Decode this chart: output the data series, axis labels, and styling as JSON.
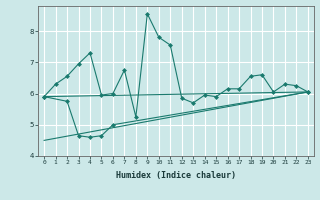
{
  "xlabel": "Humidex (Indice chaleur)",
  "background_color": "#cce8e8",
  "grid_color": "#ffffff",
  "line_color": "#1a7a6e",
  "xlim": [
    -0.5,
    23.5
  ],
  "ylim": [
    4.0,
    8.8
  ],
  "xticks": [
    0,
    1,
    2,
    3,
    4,
    5,
    6,
    7,
    8,
    9,
    10,
    11,
    12,
    13,
    14,
    15,
    16,
    17,
    18,
    19,
    20,
    21,
    22,
    23
  ],
  "yticks": [
    4,
    5,
    6,
    7,
    8
  ],
  "line1_x": [
    0,
    1,
    2,
    3,
    4,
    5,
    6,
    7,
    8,
    9,
    10,
    11,
    12,
    13,
    14,
    15,
    16,
    17,
    18,
    19,
    20,
    21,
    22,
    23
  ],
  "line1_y": [
    5.9,
    6.3,
    6.55,
    6.95,
    7.3,
    5.95,
    6.0,
    6.75,
    5.25,
    8.55,
    7.8,
    7.55,
    5.85,
    5.7,
    5.95,
    5.9,
    6.15,
    6.15,
    6.55,
    6.6,
    6.05,
    6.3,
    6.25,
    6.05
  ],
  "line2_x": [
    0,
    2,
    3,
    4,
    5,
    6,
    23
  ],
  "line2_y": [
    5.9,
    5.75,
    4.65,
    4.6,
    4.65,
    5.0,
    6.05
  ],
  "line3_x": [
    0,
    23
  ],
  "line3_y": [
    4.5,
    6.05
  ],
  "line4_x": [
    0,
    23
  ],
  "line4_y": [
    5.9,
    6.05
  ]
}
